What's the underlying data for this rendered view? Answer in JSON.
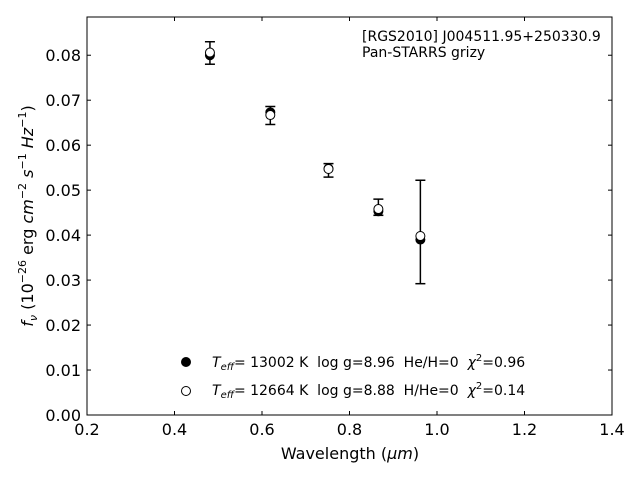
{
  "chart_data": {
    "type": "scatter",
    "annotation": [
      "[RGS2010] J004511.95+250330.9",
      "Pan-STARRS grizy"
    ],
    "xlabel": {
      "prefix": "Wavelength (",
      "unit": "μm",
      "suffix": ")"
    },
    "ylabel": {
      "f": "f",
      "nu": "ν",
      "part1": " (10",
      "exp1": "−26",
      "part2": " erg ",
      "cm": "cm",
      "exp2": "−2",
      "s": "s",
      "exp3": "−1",
      "Hz": "Hz",
      "exp4": "−1",
      "close": ")"
    },
    "xlim": [
      0.2,
      1.4
    ],
    "ylim": [
      0.0,
      0.0885
    ],
    "xticks": [
      0.2,
      0.4,
      0.6,
      0.8,
      1.0,
      1.2,
      1.4
    ],
    "xtick_labels": [
      "0.2",
      "0.4",
      "0.6",
      "0.8",
      "1.0",
      "1.2",
      "1.4"
    ],
    "yticks": [
      0.0,
      0.01,
      0.02,
      0.03,
      0.04,
      0.05,
      0.06,
      0.07,
      0.08
    ],
    "ytick_labels": [
      "0.00",
      "0.01",
      "0.02",
      "0.03",
      "0.04",
      "0.05",
      "0.06",
      "0.07",
      "0.08"
    ],
    "grid": false,
    "legend_position": "bottom-center",
    "observed": {
      "x": [
        0.481,
        0.619,
        0.752,
        0.866,
        0.962
      ],
      "y": [
        0.0805,
        0.0666,
        0.0544,
        0.0462,
        0.0407
      ],
      "yerr": [
        0.0025,
        0.002,
        0.0015,
        0.0018,
        0.0115
      ]
    },
    "series": [
      {
        "name": {
          "T": "T",
          "sub": "eff",
          "rest": "= 13002 K  log g=8.96  He/H=0  ",
          "chi": "χ",
          "sup": "2",
          "val": "=0.96"
        },
        "marker": "filled-circle",
        "x": [
          0.481,
          0.619,
          0.752,
          0.866,
          0.962
        ],
        "y": [
          0.08,
          0.0673,
          0.0548,
          0.0453,
          0.039
        ]
      },
      {
        "name": {
          "T": "T",
          "sub": "eff",
          "rest": "= 12664 K  log g=8.88  H/He=0  ",
          "chi": "χ",
          "sup": "2",
          "val": "=0.14"
        },
        "marker": "open-circle",
        "x": [
          0.481,
          0.619,
          0.752,
          0.866,
          0.962
        ],
        "y": [
          0.0806,
          0.0667,
          0.0547,
          0.0458,
          0.0398
        ]
      }
    ]
  }
}
